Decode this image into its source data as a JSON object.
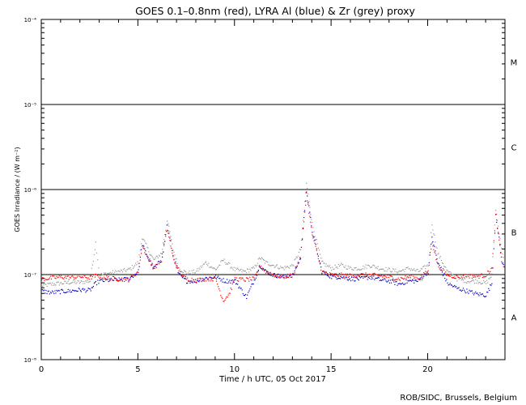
{
  "chart_data": {
    "type": "scatter",
    "title": "GOES 0.1–0.8nm (red), LYRA Al (blue) & Zr (grey) proxy",
    "xlabel": "Time / h UTC, 05 Oct 2017",
    "ylabel": "GOES Irradiance / (W m⁻²)",
    "xlim": [
      0,
      24
    ],
    "ylim": [
      1e-08,
      0.0001
    ],
    "yscale": "log",
    "x_ticks": [
      "0",
      "5",
      "10",
      "15",
      "20"
    ],
    "x_tick_values": [
      0,
      5,
      10,
      15,
      20
    ],
    "y_ticks": [
      "10⁻⁸",
      "10⁻⁷",
      "10⁻⁶",
      "10⁻⁵",
      "10⁻⁴"
    ],
    "flare_class_lines": [
      1e-07,
      1e-06,
      1e-05
    ],
    "flare_classes": [
      {
        "label": "A",
        "value": 3.16e-08
      },
      {
        "label": "B",
        "value": 3.16e-07
      },
      {
        "label": "C",
        "value": 3.16e-06
      },
      {
        "label": "M",
        "value": 3.16e-05
      }
    ],
    "series": [
      {
        "name": "GOES 0.1–0.8nm",
        "color": "#ff0000",
        "points": [
          [
            0,
            9e-08
          ],
          [
            0.5,
            9.2e-08
          ],
          [
            1,
            9.5e-08
          ],
          [
            1.5,
            9.3e-08
          ],
          [
            2,
            9.6e-08
          ],
          [
            2.5,
            9.3e-08
          ],
          [
            2.8,
            9.8e-08
          ],
          [
            3,
            9.6e-08
          ],
          [
            3.5,
            9.2e-08
          ],
          [
            4,
            9e-08
          ],
          [
            4.5,
            8.8e-08
          ],
          [
            5,
            1.1e-07
          ],
          [
            5.2,
            2.2e-07
          ],
          [
            5.5,
            1.6e-07
          ],
          [
            5.8,
            1.2e-07
          ],
          [
            6.2,
            1.5e-07
          ],
          [
            6.5,
            3.5e-07
          ],
          [
            6.8,
            1.6e-07
          ],
          [
            7.1,
            1.1e-07
          ],
          [
            7.5,
            9e-08
          ],
          [
            8,
            8.7e-08
          ],
          [
            8.5,
            9e-08
          ],
          [
            9,
            9e-08
          ],
          [
            9.4,
            5e-08
          ],
          [
            9.7,
            6e-08
          ],
          [
            10,
            9e-08
          ],
          [
            10.5,
            8.8e-08
          ],
          [
            11,
            9e-08
          ],
          [
            11.3,
            1.3e-07
          ],
          [
            11.6,
            1.1e-07
          ],
          [
            12,
            1e-07
          ],
          [
            12.5,
            9.5e-08
          ],
          [
            13,
            1e-07
          ],
          [
            13.4,
            1.6e-07
          ],
          [
            13.7,
            9e-07
          ],
          [
            14,
            3e-07
          ],
          [
            14.5,
            1.1e-07
          ],
          [
            15,
            1e-07
          ],
          [
            15.5,
            1e-07
          ],
          [
            16,
            9.8e-08
          ],
          [
            16.5,
            1e-07
          ],
          [
            17,
            1e-07
          ],
          [
            17.5,
            9.8e-08
          ],
          [
            18,
            9.5e-08
          ],
          [
            18.5,
            9e-08
          ],
          [
            19,
            9.5e-08
          ],
          [
            19.5,
            9.2e-08
          ],
          [
            20,
            1.1e-07
          ],
          [
            20.2,
            2.5e-07
          ],
          [
            20.5,
            1.3e-07
          ],
          [
            21,
            1e-07
          ],
          [
            21.5,
            9.5e-08
          ],
          [
            22,
            9.8e-08
          ],
          [
            22.5,
            9.6e-08
          ],
          [
            23,
            1e-07
          ],
          [
            23.3,
            1.2e-07
          ],
          [
            23.5,
            5e-07
          ],
          [
            23.8,
            1.5e-07
          ],
          [
            24,
            1.1e-07
          ]
        ]
      },
      {
        "name": "LYRA Al",
        "color": "#0000cc",
        "points": [
          [
            0,
            6.5e-08
          ],
          [
            0.5,
            6.2e-08
          ],
          [
            1,
            6.4e-08
          ],
          [
            1.5,
            6.5e-08
          ],
          [
            2,
            6.7e-08
          ],
          [
            2.5,
            6.6e-08
          ],
          [
            2.8,
            8e-08
          ],
          [
            3,
            8.5e-08
          ],
          [
            3.5,
            8.7e-08
          ],
          [
            4,
            8.8e-08
          ],
          [
            4.5,
            9e-08
          ],
          [
            5,
            1.1e-07
          ],
          [
            5.2,
            2.3e-07
          ],
          [
            5.5,
            1.6e-07
          ],
          [
            5.8,
            1.2e-07
          ],
          [
            6.2,
            1.5e-07
          ],
          [
            6.5,
            3.8e-07
          ],
          [
            6.8,
            1.7e-07
          ],
          [
            7.1,
            1e-07
          ],
          [
            7.5,
            8.5e-08
          ],
          [
            8,
            8.5e-08
          ],
          [
            8.5,
            9.2e-08
          ],
          [
            9,
            9.5e-08
          ],
          [
            9.5,
            8.5e-08
          ],
          [
            10,
            8.5e-08
          ],
          [
            10.6,
            5.5e-08
          ],
          [
            11,
            8.7e-08
          ],
          [
            11.3,
            1.3e-07
          ],
          [
            11.6,
            1.1e-07
          ],
          [
            12,
            1e-07
          ],
          [
            12.5,
            9.5e-08
          ],
          [
            13,
            1e-07
          ],
          [
            13.4,
            1.6e-07
          ],
          [
            13.7,
            1e-06
          ],
          [
            14,
            3.3e-07
          ],
          [
            14.5,
            1.1e-07
          ],
          [
            15,
            9.5e-08
          ],
          [
            15.5,
            9.5e-08
          ],
          [
            16,
            9e-08
          ],
          [
            16.5,
            9e-08
          ],
          [
            17,
            9.5e-08
          ],
          [
            17.5,
            8.8e-08
          ],
          [
            18,
            8.5e-08
          ],
          [
            18.5,
            7.8e-08
          ],
          [
            19,
            8.5e-08
          ],
          [
            19.5,
            8.5e-08
          ],
          [
            20,
            1.1e-07
          ],
          [
            20.2,
            2.8e-07
          ],
          [
            20.5,
            1.4e-07
          ],
          [
            21,
            8e-08
          ],
          [
            21.5,
            7e-08
          ],
          [
            22,
            6.5e-08
          ],
          [
            22.5,
            6e-08
          ],
          [
            23,
            5.8e-08
          ],
          [
            23.3,
            8e-08
          ],
          [
            23.5,
            5.2e-07
          ],
          [
            23.8,
            1.6e-07
          ],
          [
            24,
            1.1e-07
          ]
        ]
      },
      {
        "name": "LYRA Zr",
        "color": "#999999",
        "points": [
          [
            0,
            7.5e-08
          ],
          [
            0.5,
            7.8e-08
          ],
          [
            1,
            8e-08
          ],
          [
            1.5,
            8.2e-08
          ],
          [
            2,
            8.2e-08
          ],
          [
            2.5,
            8.5e-08
          ],
          [
            2.8,
            2.4e-07
          ],
          [
            3,
            1e-07
          ],
          [
            3.5,
            1.05e-07
          ],
          [
            4,
            1.1e-07
          ],
          [
            4.5,
            1.15e-07
          ],
          [
            5,
            1.4e-07
          ],
          [
            5.2,
            2.8e-07
          ],
          [
            5.5,
            2e-07
          ],
          [
            5.8,
            1.5e-07
          ],
          [
            6.2,
            1.8e-07
          ],
          [
            6.5,
            4.5e-07
          ],
          [
            6.8,
            2e-07
          ],
          [
            7.1,
            1.2e-07
          ],
          [
            7.5,
            1.05e-07
          ],
          [
            8,
            1.1e-07
          ],
          [
            8.5,
            1.4e-07
          ],
          [
            9,
            1.15e-07
          ],
          [
            9.4,
            1.5e-07
          ],
          [
            10,
            1.15e-07
          ],
          [
            10.5,
            1.1e-07
          ],
          [
            11,
            1.2e-07
          ],
          [
            11.3,
            1.6e-07
          ],
          [
            11.6,
            1.4e-07
          ],
          [
            12,
            1.3e-07
          ],
          [
            12.5,
            1.2e-07
          ],
          [
            13,
            1.3e-07
          ],
          [
            13.4,
            2e-07
          ],
          [
            13.7,
            1.2e-06
          ],
          [
            14,
            4e-07
          ],
          [
            14.5,
            1.4e-07
          ],
          [
            15,
            1.2e-07
          ],
          [
            15.5,
            1.3e-07
          ],
          [
            16,
            1.2e-07
          ],
          [
            16.5,
            1.2e-07
          ],
          [
            17,
            1.3e-07
          ],
          [
            17.5,
            1.2e-07
          ],
          [
            18,
            1.15e-07
          ],
          [
            18.5,
            1.1e-07
          ],
          [
            19,
            1.2e-07
          ],
          [
            19.5,
            1.1e-07
          ],
          [
            20,
            1.3e-07
          ],
          [
            20.2,
            4e-07
          ],
          [
            20.5,
            1.8e-07
          ],
          [
            21,
            1.1e-07
          ],
          [
            21.5,
            9e-08
          ],
          [
            22,
            8.5e-08
          ],
          [
            22.5,
            8.5e-08
          ],
          [
            23,
            8e-08
          ],
          [
            23.3,
            1e-07
          ],
          [
            23.5,
            6e-07
          ],
          [
            23.8,
            2e-07
          ],
          [
            24,
            1.4e-07
          ]
        ]
      }
    ],
    "credit": "ROB/SIDC, Brussels, Belgium"
  }
}
